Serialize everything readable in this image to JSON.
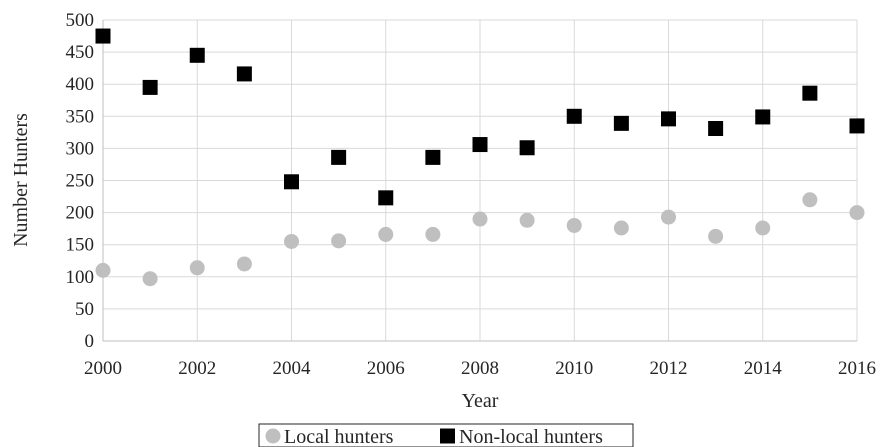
{
  "chart_data": {
    "type": "scatter",
    "title": "",
    "xlabel": "Year",
    "ylabel": "Number Hunters",
    "xlim": [
      2000,
      2016
    ],
    "ylim": [
      0,
      500
    ],
    "xticks": [
      2000,
      2002,
      2004,
      2006,
      2008,
      2010,
      2012,
      2014,
      2016
    ],
    "yticks": [
      0,
      50,
      100,
      150,
      200,
      250,
      300,
      350,
      400,
      450,
      500
    ],
    "grid": true,
    "legend_position": "bottom",
    "series": [
      {
        "name": "Local hunters",
        "marker": "circle",
        "color": "#bfbfbf",
        "x": [
          2000,
          2001,
          2002,
          2003,
          2004,
          2005,
          2006,
          2007,
          2008,
          2009,
          2010,
          2011,
          2012,
          2013,
          2014,
          2015,
          2016
        ],
        "y": [
          110,
          97,
          114,
          120,
          155,
          156,
          166,
          166,
          190,
          188,
          180,
          176,
          193,
          163,
          176,
          220,
          200
        ]
      },
      {
        "name": "Non-local hunters",
        "marker": "square",
        "color": "#000000",
        "x": [
          2000,
          2001,
          2002,
          2003,
          2004,
          2005,
          2006,
          2007,
          2008,
          2009,
          2010,
          2011,
          2012,
          2013,
          2014,
          2015,
          2016
        ],
        "y": [
          475,
          395,
          445,
          416,
          248,
          286,
          223,
          286,
          306,
          301,
          350,
          339,
          346,
          331,
          349,
          386,
          335
        ]
      }
    ]
  }
}
